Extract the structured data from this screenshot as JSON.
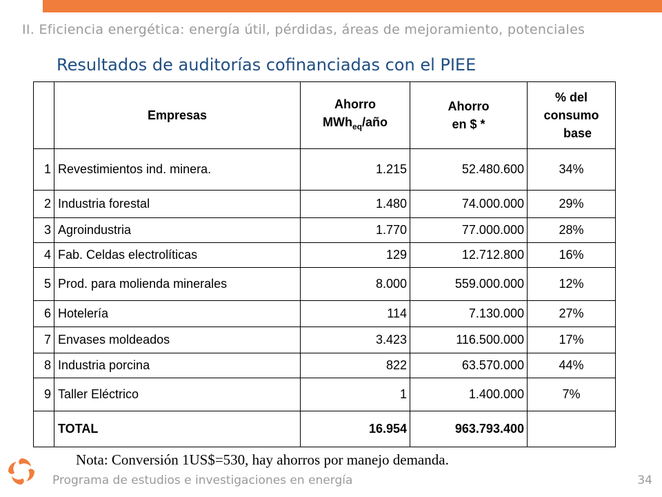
{
  "section_title": "II. Eficiencia energética: energía útil, pérdidas, áreas de mejoramiento, potenciales",
  "slide_title": "Resultados de auditorías cofinanciadas con el PIEE",
  "table": {
    "headers": {
      "empresas": "Empresas",
      "ahorro_mwh_line1": "Ahorro",
      "ahorro_mwh_unit": "MWh",
      "ahorro_mwh_sub": "eq",
      "ahorro_mwh_tail": "/año",
      "ahorro_pesos_line1": "Ahorro",
      "ahorro_pesos_line2": "en $ *",
      "pct_line1": "% del",
      "pct_line2": "consumo",
      "pct_line3": "base"
    },
    "rows": [
      {
        "n": "1",
        "empresa": "Revestimientos ind. minera.",
        "mwh": "1.215",
        "pesos": "52.480.600",
        "pct": "34%"
      },
      {
        "n": "2",
        "empresa": "Industria forestal",
        "mwh": "1.480",
        "pesos": "74.000.000",
        "pct": "29%"
      },
      {
        "n": "3",
        "empresa": "Agroindustria",
        "mwh": "1.770",
        "pesos": "77.000.000",
        "pct": "28%"
      },
      {
        "n": "4",
        "empresa": "Fab. Celdas electrolíticas",
        "mwh": "129",
        "pesos": "12.712.800",
        "pct": "16%"
      },
      {
        "n": "5",
        "empresa": "Prod. para molienda minerales",
        "mwh": "8.000",
        "pesos": "559.000.000",
        "pct": "12%"
      },
      {
        "n": "6",
        "empresa": "Hotelería",
        "mwh": "114",
        "pesos": "7.130.000",
        "pct": "27%"
      },
      {
        "n": "7",
        "empresa": "Envases moldeados",
        "mwh": "3.423",
        "pesos": "116.500.000",
        "pct": "17%"
      },
      {
        "n": "8",
        "empresa": "Industria porcina",
        "mwh": "822",
        "pesos": "63.570.000",
        "pct": "44%"
      },
      {
        "n": "9",
        "empresa": "Taller Eléctrico",
        "mwh": "1",
        "pesos": "1.400.000",
        "pct": "7%"
      }
    ],
    "total": {
      "label": "TOTAL",
      "mwh": "16.954",
      "pesos": "963.793.400"
    }
  },
  "note": "Nota: Conversión 1US$=530, hay ahorros por manejo demanda.",
  "footer": "Programa de estudios e investigaciones en energía",
  "page_number": "34",
  "colors": {
    "accent": "#f07d3c",
    "title": "#1f4e82",
    "muted": "#9a9a9a"
  }
}
